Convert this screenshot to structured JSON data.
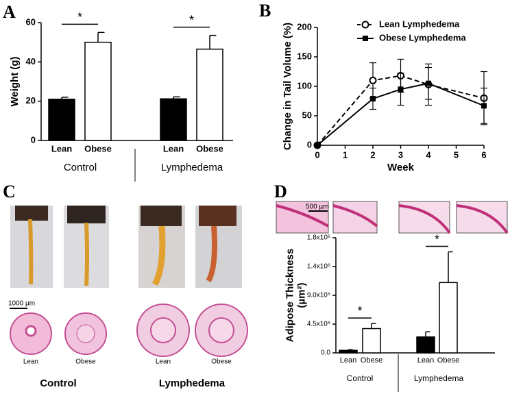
{
  "panel_labels": [
    "A",
    "B",
    "C",
    "D"
  ],
  "panel_c": {
    "scale_bar": "1000 µm",
    "labels": [
      "Lean",
      "Obese",
      "Lean",
      "Obese"
    ],
    "groups": [
      "Control",
      "Lymphedema"
    ]
  },
  "chart_data": [
    {
      "type": "bar",
      "ylabel": [
        "Weight (g)"
      ],
      "categories": [
        "Lean",
        "Obese",
        "Lean",
        "Obese"
      ],
      "groups": [
        "Control",
        "Lymphedema"
      ],
      "values": [
        21,
        50,
        21.2,
        46.5
      ],
      "errors": [
        1,
        5,
        1,
        7
      ],
      "colors": [
        "#000000",
        "#ffffff",
        "#000000",
        "#ffffff"
      ],
      "annotations": [
        "*",
        "*"
      ],
      "ylim": [
        0,
        60
      ],
      "yticks": [
        0,
        20,
        40,
        60
      ]
    },
    {
      "type": "line",
      "xlabel": "Week",
      "ylabel": [
        "Change in Tail Volume (%)"
      ],
      "x": [
        0,
        2,
        3,
        4,
        6
      ],
      "xlim": [
        0,
        6
      ],
      "xticks": [
        0,
        1,
        2,
        3,
        4,
        5,
        6
      ],
      "ylim": [
        0,
        200
      ],
      "yticks": [
        0,
        50,
        100,
        150,
        200
      ],
      "legend": "upper right",
      "series": [
        {
          "name": "Lean Lymphedema",
          "color": "#000000",
          "marker": "open-circle",
          "dashed": true,
          "values": [
            0,
            110,
            118,
            103,
            80
          ],
          "errors": [
            0,
            30,
            28,
            35,
            45
          ]
        },
        {
          "name": "Obese Lymphedema",
          "color": "#000000",
          "marker": "square",
          "dashed": false,
          "values": [
            0,
            79,
            95,
            105,
            67
          ],
          "errors": [
            0,
            18,
            27,
            27,
            30
          ]
        }
      ]
    },
    {
      "type": "bar",
      "scale_bar": "500 µm",
      "ylabel": [
        "Adipose Thickness",
        "(µm²)"
      ],
      "categories": [
        "Lean",
        "Obese",
        "Lean",
        "Obese"
      ],
      "groups": [
        "Control",
        "Lymphedema"
      ],
      "values": [
        40000,
        380000,
        250000,
        1100000
      ],
      "errors": [
        10000,
        80000,
        80000,
        480000
      ],
      "colors": [
        "#000000",
        "#ffffff",
        "#000000",
        "#ffffff"
      ],
      "annotations": [
        "*",
        "*"
      ],
      "ylim": [
        0,
        1800000
      ],
      "yticks": [
        {
          "value": 0,
          "label": "0.0"
        },
        {
          "value": 450000,
          "label": "4.5x10⁵"
        },
        {
          "value": 900000,
          "label": "9.0x10⁵"
        },
        {
          "value": 1350000,
          "label": "1.4x10⁶"
        },
        {
          "value": 1800000,
          "label": "1.8x10⁶"
        }
      ]
    }
  ]
}
